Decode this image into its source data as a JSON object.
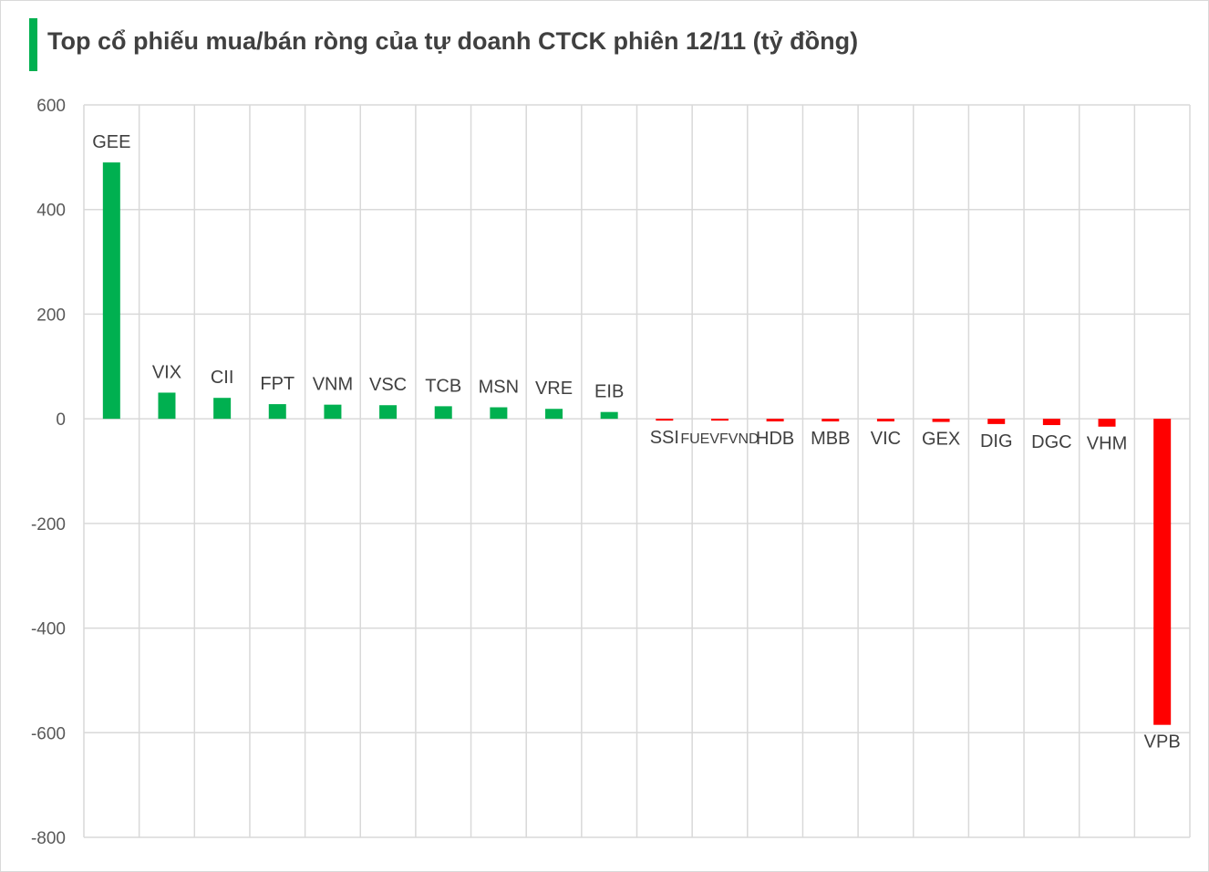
{
  "title": "Top cổ phiếu mua/bán ròng của tự doanh CTCK phiên 12/11 (tỷ đồng)",
  "colors": {
    "accent": "#00b050",
    "positive": "#00b050",
    "negative": "#ff0000",
    "grid": "#d9d9d9",
    "axis_text": "#595959"
  },
  "chart_data": {
    "type": "bar",
    "categories": [
      "GEE",
      "VIX",
      "CII",
      "FPT",
      "VNM",
      "VSC",
      "TCB",
      "MSN",
      "VRE",
      "EIB",
      "SSI",
      "FUEVFVND",
      "HDB",
      "MBB",
      "VIC",
      "GEX",
      "DIG",
      "DGC",
      "VHM",
      "VPB"
    ],
    "values": [
      490,
      50,
      40,
      28,
      27,
      26,
      24,
      22,
      19,
      13,
      -3,
      -3,
      -5,
      -5,
      -5,
      -6,
      -10,
      -12,
      -15,
      -585
    ],
    "ylim": [
      -800,
      600
    ],
    "yticks": [
      600,
      400,
      200,
      0,
      -200,
      -400,
      -600,
      -800
    ],
    "grid": true,
    "legend": "none"
  }
}
